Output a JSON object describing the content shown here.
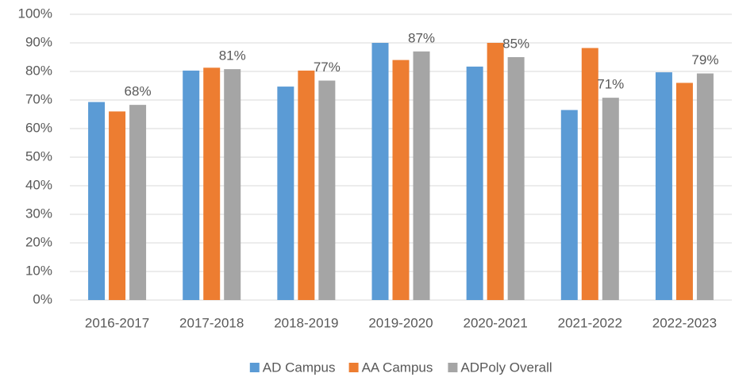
{
  "chart_data": {
    "type": "bar",
    "categories": [
      "2016-2017",
      "2017-2018",
      "2018-2019",
      "2019-2020",
      "2020-2021",
      "2021-2022",
      "2022-2023"
    ],
    "series": [
      {
        "name": "AD Campus",
        "color": "#5b9bd5",
        "values": [
          69.3,
          80.3,
          74.7,
          90,
          81.7,
          66.5,
          79.7
        ]
      },
      {
        "name": "AA Campus",
        "color": "#ed7d31",
        "values": [
          66,
          81.3,
          80.3,
          84,
          90,
          88.2,
          76
        ]
      },
      {
        "name": "ADPoly Overall",
        "color": "#a5a5a5",
        "values": [
          68.3,
          80.8,
          76.8,
          87,
          85,
          70.8,
          79.3
        ],
        "value_labels": [
          "68%",
          "81%",
          "77%",
          "87%",
          "85%",
          "71%",
          "79%"
        ]
      }
    ],
    "ylim": [
      0,
      100
    ],
    "yticks": [
      {
        "value": 0,
        "label": "0%"
      },
      {
        "value": 10,
        "label": "10%"
      },
      {
        "value": 20,
        "label": "20%"
      },
      {
        "value": 30,
        "label": "30%"
      },
      {
        "value": 40,
        "label": "40%"
      },
      {
        "value": 50,
        "label": "50%"
      },
      {
        "value": 60,
        "label": "60%"
      },
      {
        "value": 70,
        "label": "70%"
      },
      {
        "value": 80,
        "label": "80%"
      },
      {
        "value": 90,
        "label": "90%"
      },
      {
        "value": 100,
        "label": "100%"
      }
    ],
    "grid": true,
    "legend": "bottom"
  }
}
